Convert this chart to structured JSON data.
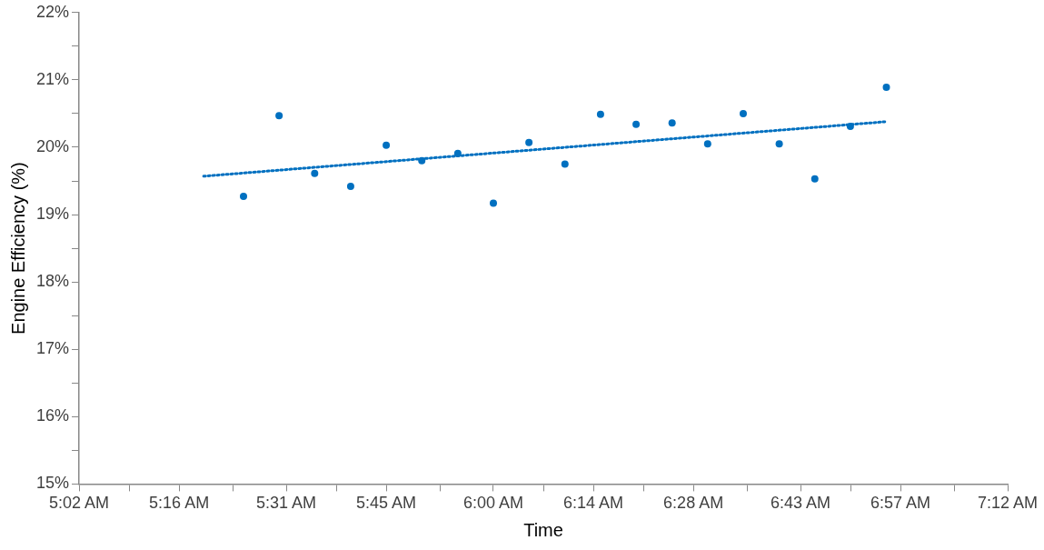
{
  "chart_data": {
    "type": "scatter",
    "xlabel": "Time",
    "ylabel": "Engine Efficiency (%)",
    "xlim": [
      5.0333,
      7.2
    ],
    "xticks": [
      {
        "value": 5.0333,
        "label": "5:02 AM"
      },
      {
        "value": 5.15,
        "label": null
      },
      {
        "value": 5.2667,
        "label": "5:16 AM"
      },
      {
        "value": 5.3917,
        "label": null
      },
      {
        "value": 5.5167,
        "label": "5:31 AM"
      },
      {
        "value": 5.6333,
        "label": null
      },
      {
        "value": 5.75,
        "label": "5:45 AM"
      },
      {
        "value": 5.875,
        "label": null
      },
      {
        "value": 6,
        "label": "6:00 AM"
      },
      {
        "value": 6.1167,
        "label": null
      },
      {
        "value": 6.2333,
        "label": "6:14 AM"
      },
      {
        "value": 6.35,
        "label": null
      },
      {
        "value": 6.4667,
        "label": "6:28 AM"
      },
      {
        "value": 6.5917,
        "label": null
      },
      {
        "value": 6.7167,
        "label": "6:43 AM"
      },
      {
        "value": 6.8333,
        "label": null
      },
      {
        "value": 6.95,
        "label": "6:57 AM"
      },
      {
        "value": 7.075,
        "label": null
      },
      {
        "value": 7.2,
        "label": "7:12 AM"
      }
    ],
    "ylim": [
      15,
      22
    ],
    "yticks": [
      {
        "value": 15,
        "label": "15%"
      },
      {
        "value": 15.5,
        "label": null
      },
      {
        "value": 16,
        "label": "16%"
      },
      {
        "value": 16.5,
        "label": null
      },
      {
        "value": 17,
        "label": "17%"
      },
      {
        "value": 17.5,
        "label": null
      },
      {
        "value": 18,
        "label": "18%"
      },
      {
        "value": 18.5,
        "label": null
      },
      {
        "value": 19,
        "label": "19%"
      },
      {
        "value": 19.5,
        "label": null
      },
      {
        "value": 20,
        "label": "20%"
      },
      {
        "value": 20.5,
        "label": null
      },
      {
        "value": 21,
        "label": "21%"
      },
      {
        "value": 21.5,
        "label": null
      },
      {
        "value": 22,
        "label": "22%"
      }
    ],
    "grid": false,
    "legend": false,
    "series": [
      {
        "type": "scatter",
        "marker": "circle",
        "color": "#0070c0",
        "x": [
          5.417,
          5.5,
          5.583,
          5.667,
          5.75,
          5.833,
          5.917,
          6,
          6.083,
          6.167,
          6.25,
          6.333,
          6.417,
          6.5,
          6.583,
          6.667,
          6.75,
          6.833,
          6.917
        ],
        "values": [
          19.27,
          20.47,
          19.61,
          19.42,
          20.03,
          19.8,
          19.91,
          19.17,
          20.07,
          19.75,
          20.49,
          20.34,
          20.36,
          20.05,
          20.5,
          20.05,
          19.53,
          20.31,
          20.89
        ]
      },
      {
        "type": "line",
        "marker": "none",
        "line_style": "dotted",
        "color": "#0070c0",
        "x": [
          5.324,
          6.917
        ],
        "values": [
          19.57,
          20.38
        ]
      }
    ]
  }
}
